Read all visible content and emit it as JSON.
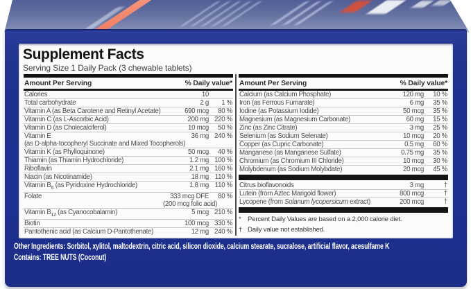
{
  "panel": {
    "title": "Supplement Facts",
    "serving": "Serving Size 1 Daily Pack (3 chewable tablets)"
  },
  "table": {
    "header_amount": "Amount Per Serving",
    "header_dv": "% Daily value*",
    "columns": [
      {
        "rows": [
          {
            "name": [
              {
                "t": "Calories"
              }
            ],
            "amount": "10",
            "dv": ""
          },
          {
            "name": [
              {
                "t": "Total carbohydrate"
              }
            ],
            "amount": "2 g",
            "dv": "1 %"
          },
          {
            "name": [
              {
                "t": "Vitamin A (as Beta Carotene and Retinyl Acetate)"
              }
            ],
            "amount": "690 mcg",
            "dv": "80 %"
          },
          {
            "name": [
              {
                "t": "Vitamin C (as L-Ascorbic Acid)"
              }
            ],
            "amount": "200 mg",
            "dv": "220 %"
          },
          {
            "name": [
              {
                "t": "Vitamin D (as Cholecalciferol)"
              }
            ],
            "amount": "10 mcg",
            "dv": "50 %"
          },
          {
            "name": [
              {
                "t": "Vitamin E"
              }
            ],
            "amount": "36 mg",
            "dv": "240 %",
            "line2": {
              "name": [
                {
                  "t": "(as D-alpha-tocopheryl Succinate and Mixed Tocopherols)"
                }
              ],
              "amount": "",
              "dv": ""
            }
          },
          {
            "name": [
              {
                "t": "Vitamin K (as Phylloquinone)"
              }
            ],
            "amount": "50 mcg",
            "dv": "40 %"
          },
          {
            "name": [
              {
                "t": "Thiamin (as Thiamin Hydrochloride)"
              }
            ],
            "amount": "1.2 mg",
            "dv": "100 %"
          },
          {
            "name": [
              {
                "t": "Riboflavin"
              }
            ],
            "amount": "2.1 mg",
            "dv": "160 %"
          },
          {
            "name": [
              {
                "t": "Niacin (as Nicotinamide)"
              }
            ],
            "amount": "18 mg",
            "dv": "110 %"
          },
          {
            "name": [
              {
                "t": "Vitamin B"
              },
              {
                "t": "6",
                "sub": true
              },
              {
                "t": " (as Pyridoxine Hydrochloride)"
              }
            ],
            "amount": "1.8 mg",
            "dv": "110 %"
          },
          {
            "name": [
              {
                "t": "Folate"
              }
            ],
            "amount": "333 mcg DFE",
            "dv": "80 %",
            "line2": {
              "name": [],
              "amount": "(200 mcg folic acid)",
              "dv": ""
            }
          },
          {
            "name": [
              {
                "t": "Vitamin B"
              },
              {
                "t": "12",
                "sub": true
              },
              {
                "t": " (as Cyanocobalamin)"
              }
            ],
            "amount": "5 mcg",
            "dv": "210 %"
          },
          {
            "name": [
              {
                "t": "Biotin"
              }
            ],
            "amount": "100 mcg",
            "dv": "330 %"
          },
          {
            "name": [
              {
                "t": "Pantothenic acid (as Calcium D-Pantothenate)"
              }
            ],
            "amount": "12 mg",
            "dv": "240 %"
          }
        ]
      },
      {
        "rows": [
          {
            "name": [
              {
                "t": "Calcium (as Calcium Phosphate)"
              }
            ],
            "amount": "120 mg",
            "dv": "10 %"
          },
          {
            "name": [
              {
                "t": "Iron (as Ferrous Fumarate)"
              }
            ],
            "amount": "6 mg",
            "dv": "35 %"
          },
          {
            "name": [
              {
                "t": "Iodine (as Potassium Iodide)"
              }
            ],
            "amount": "50 mcg",
            "dv": "35 %"
          },
          {
            "name": [
              {
                "t": "Magnesium (as Magnesium Carbonate)"
              }
            ],
            "amount": "60 mg",
            "dv": "15 %"
          },
          {
            "name": [
              {
                "t": "Zinc (as Zinc Citrate)"
              }
            ],
            "amount": "3 mg",
            "dv": "25 %"
          },
          {
            "name": [
              {
                "t": "Selenium (as Sodium Selenate)"
              }
            ],
            "amount": "10 mcg",
            "dv": "20 %"
          },
          {
            "name": [
              {
                "t": "Copper (as Cupric Carbonate)"
              }
            ],
            "amount": "0.5 mg",
            "dv": "60 %"
          },
          {
            "name": [
              {
                "t": "Manganese (as Manganese Sulfate)"
              }
            ],
            "amount": "0.75 mg",
            "dv": "35 %"
          },
          {
            "name": [
              {
                "t": "Chromium (as Chromium III Chloride)"
              }
            ],
            "amount": "10 mcg",
            "dv": "30 %"
          },
          {
            "name": [
              {
                "t": "Molybdenum (as Sodium Molybdate)"
              }
            ],
            "amount": "20 mcg",
            "dv": "45 %"
          },
          {
            "type": "bar"
          },
          {
            "name": [
              {
                "t": "Citrus bioflavonoids"
              }
            ],
            "amount": "3 mg",
            "dv": "†"
          },
          {
            "name": [
              {
                "t": "Lutein (from Aztec Marigold flower)"
              }
            ],
            "amount": "800 mcg",
            "dv": "†"
          },
          {
            "name": [
              {
                "t": "Lycopene (from "
              },
              {
                "t": "Solanum lycopersicum",
                "italic": true
              },
              {
                "t": " extract)"
              }
            ],
            "amount": "200 mcg",
            "dv": "†"
          },
          {
            "type": "bar"
          }
        ],
        "footnotes": [
          {
            "sym": "*",
            "text": "Percent Daily Values are based on a 2,000 calorie diet."
          },
          {
            "sym": "†",
            "text": "Daily value not established."
          }
        ]
      }
    ]
  },
  "bottom": {
    "other_label": "Other Ingredients:",
    "other_text": "Sorbitol, xylitol, maltodextrin, citric acid, silicon dioxide, calcium stearate, sucralose, artificial flavor, acesulfame K",
    "contains_label": "Contains:",
    "contains_text": "TREE NUTS",
    "contains_suffix": "(Coconut)"
  },
  "colors": {
    "box_navy": "#20338f",
    "box_top_blue": "#64719f",
    "stripe_orange": "#ee7d5f",
    "rule_black": "#141414",
    "panel_white": "#fbfbfa"
  }
}
